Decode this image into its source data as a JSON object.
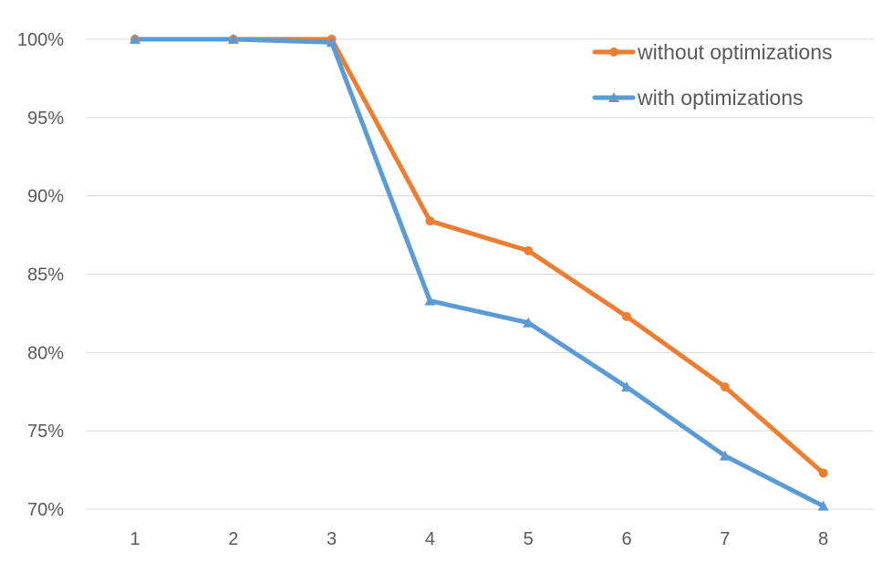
{
  "chart_data": {
    "type": "line",
    "title": "",
    "xlabel": "",
    "ylabel": "",
    "x": [
      1,
      2,
      3,
      4,
      5,
      6,
      7,
      8
    ],
    "x_tick_labels": [
      "1",
      "2",
      "3",
      "4",
      "5",
      "6",
      "7",
      "8"
    ],
    "ylim": [
      70,
      100
    ],
    "y_ticks": [
      100,
      95,
      90,
      85,
      80,
      75,
      70
    ],
    "y_tick_labels": [
      "100%",
      "95%",
      "90%",
      "85%",
      "80%",
      "75%",
      "70%"
    ],
    "y_unit": "percent",
    "grid": "horizontal",
    "legend_position": "top-right",
    "series": [
      {
        "name": "without optimizations",
        "color": "#ed7d31",
        "marker": "circle",
        "values": [
          100,
          100,
          100,
          88.4,
          86.5,
          82.3,
          77.8,
          72.3
        ]
      },
      {
        "name": "with optimizations",
        "color": "#5b9bd5",
        "marker": "triangle",
        "values": [
          100,
          100,
          99.8,
          83.3,
          81.9,
          77.8,
          73.4,
          70.2
        ]
      }
    ]
  }
}
